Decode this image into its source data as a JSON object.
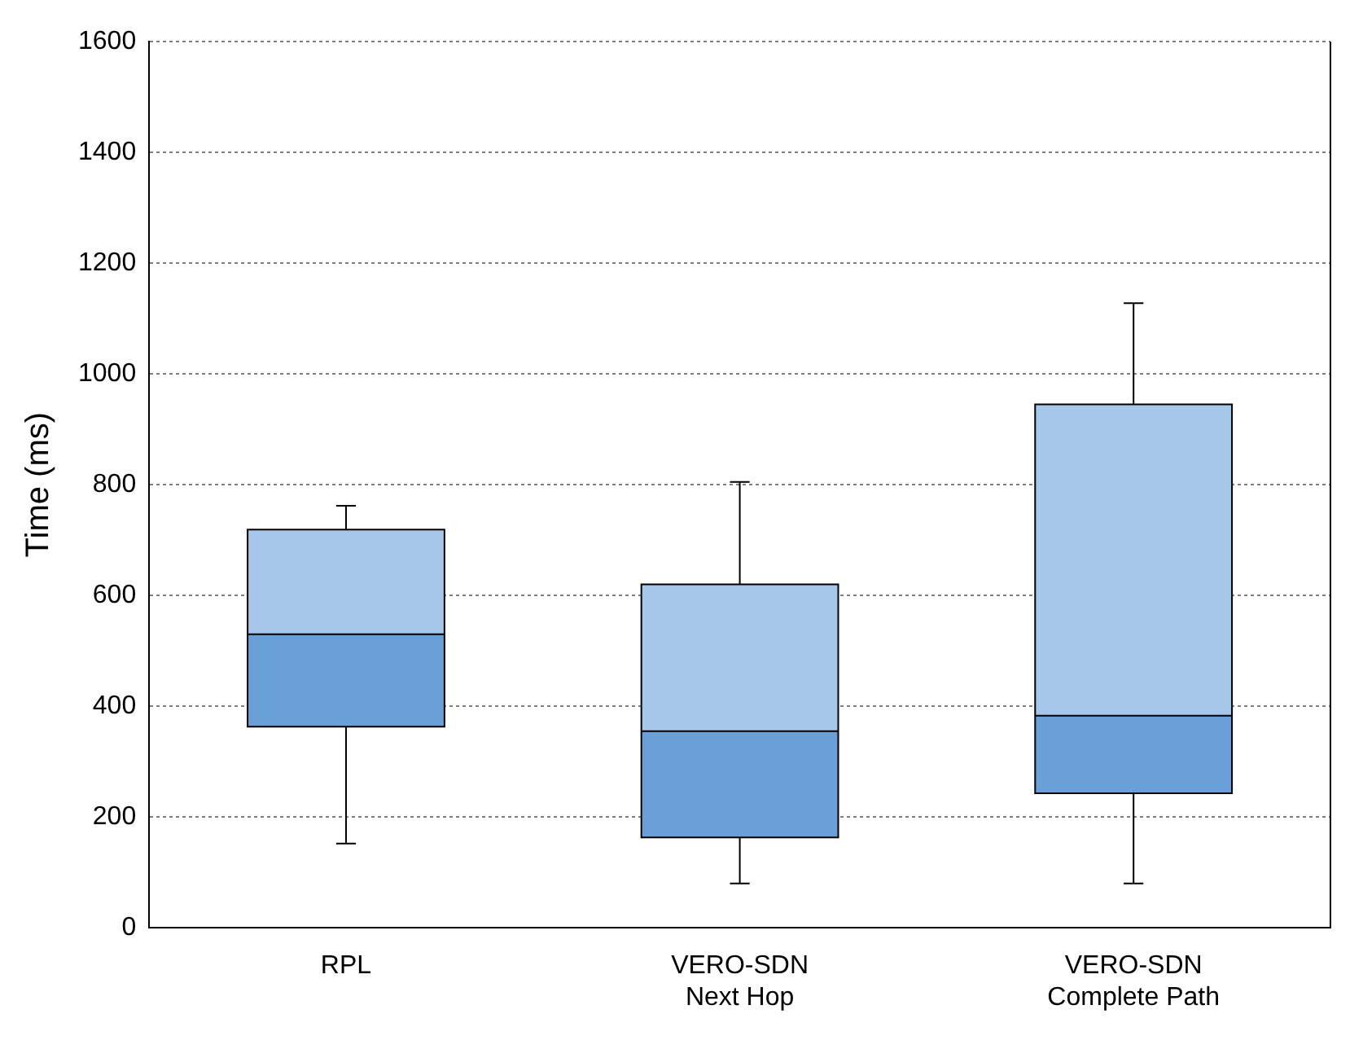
{
  "chart_data": {
    "type": "box",
    "ylabel": "Time (ms)",
    "categories": [
      "RPL",
      "VERO-SDN\nNext Hop",
      "VERO-SDN\nComplete Path"
    ],
    "boxes": [
      {
        "low": 152,
        "q1": 363,
        "median": 530,
        "q3": 719,
        "high": 762
      },
      {
        "low": 80,
        "q1": 163,
        "median": 355,
        "q3": 620,
        "high": 805
      },
      {
        "low": 80,
        "q1": 243,
        "median": 383,
        "q3": 945,
        "high": 1128
      }
    ],
    "color": "#6a9fd8",
    "colors": [
      "#a6c6ea",
      "#a6c6ea",
      "#a6c6ea"
    ],
    "ylim": [
      0,
      1600
    ],
    "yticks": [
      0,
      200,
      400,
      600,
      800,
      1000,
      1200,
      1400,
      1600
    ],
    "grid": "y",
    "legend": false
  }
}
